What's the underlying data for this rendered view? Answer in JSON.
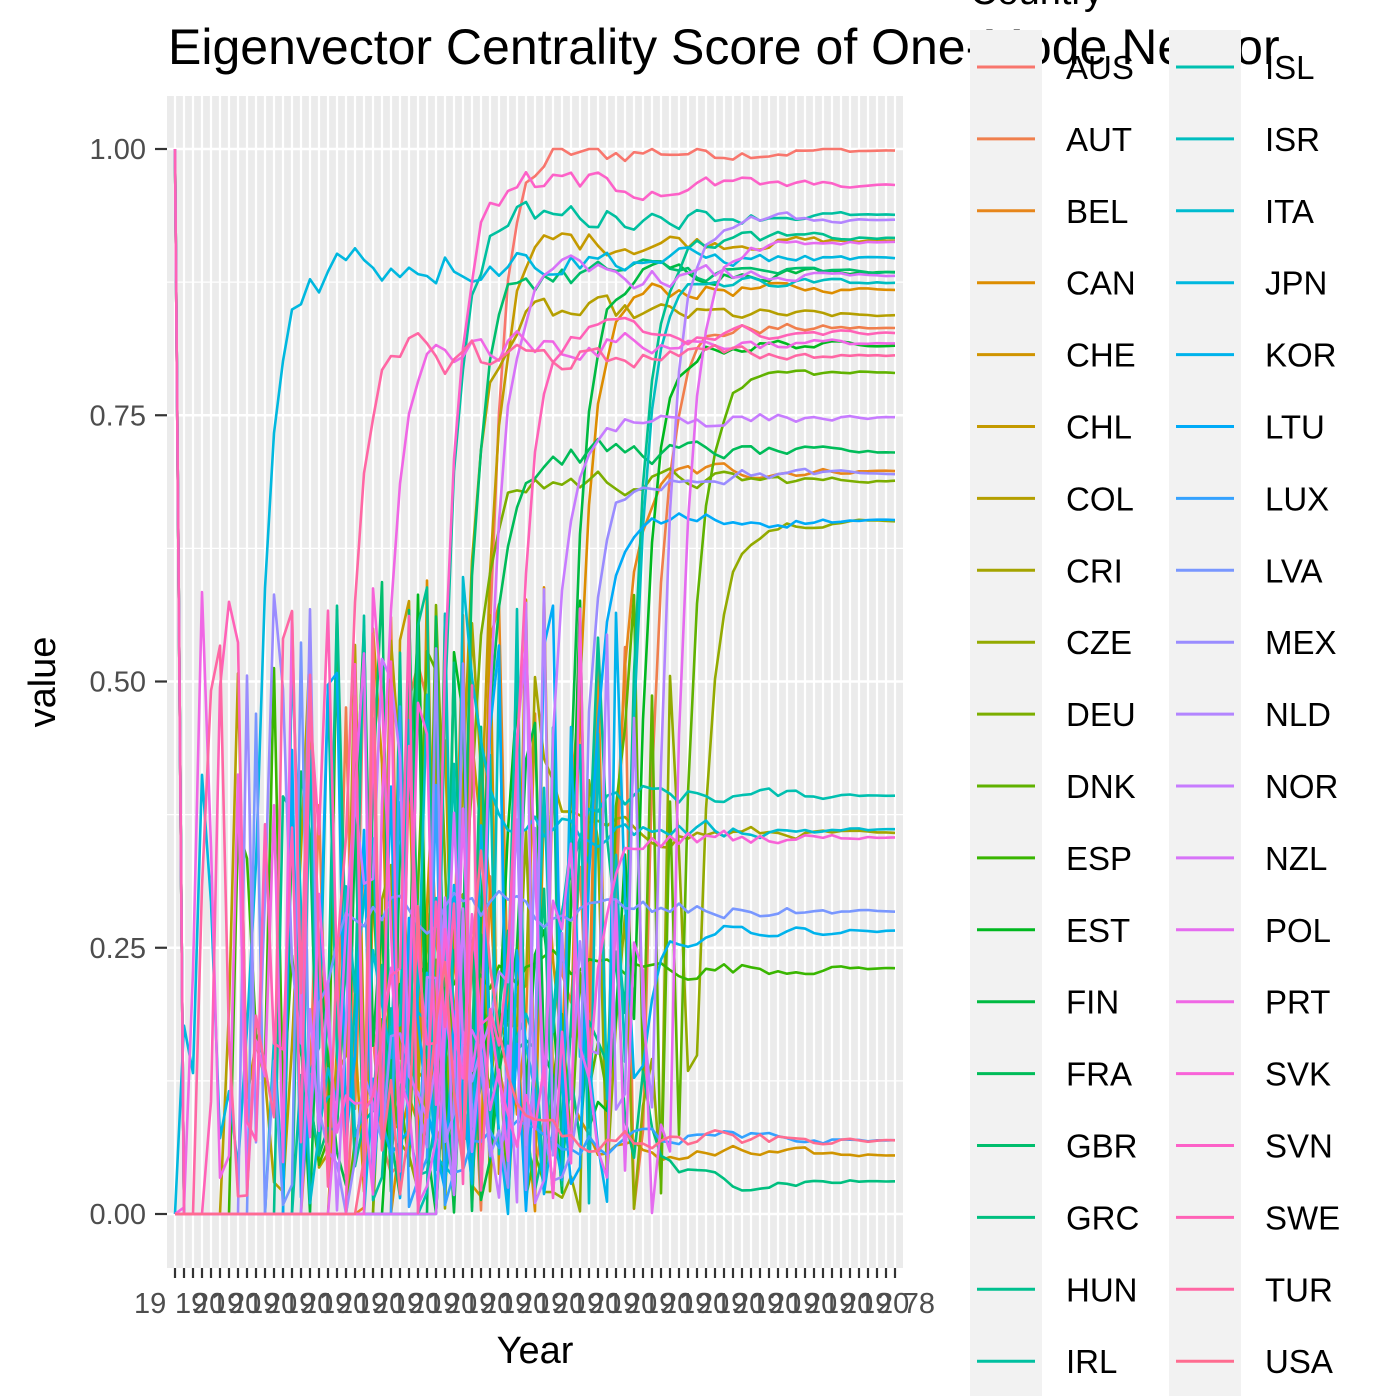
{
  "chart_data": {
    "type": "line",
    "title": "Eigenvector Centrality Score of One-Mode Networ",
    "xlabel": "Year",
    "ylabel": "value",
    "ylim": [
      -0.04,
      1.05
    ],
    "yticks": [
      0.0,
      0.25,
      0.5,
      0.75,
      1.0
    ],
    "ytick_labels": [
      "0.00",
      "0.25",
      "0.50",
      "0.75",
      "1.00"
    ],
    "xtick_count": 81,
    "xtick_labels_visible": [
      "19",
      "78"
    ],
    "grid": true,
    "panel_background": "#ebebeb",
    "legend": {
      "title": "Country",
      "placement": "right",
      "columns": 2,
      "background": "#f2f2f2"
    },
    "series": [
      {
        "name": "AUS",
        "color": "#F8766D"
      },
      {
        "name": "AUT",
        "color": "#F07F4D"
      },
      {
        "name": "BEL",
        "color": "#E7861B"
      },
      {
        "name": "CAN",
        "color": "#DD8D00"
      },
      {
        "name": "CHE",
        "color": "#D09400"
      },
      {
        "name": "CHL",
        "color": "#C49A00"
      },
      {
        "name": "COL",
        "color": "#B59F00"
      },
      {
        "name": "CRI",
        "color": "#A5A400"
      },
      {
        "name": "CZE",
        "color": "#93AA00"
      },
      {
        "name": "DEU",
        "color": "#7CAE00"
      },
      {
        "name": "DNK",
        "color": "#60B200"
      },
      {
        "name": "ESP",
        "color": "#39B600"
      },
      {
        "name": "EST",
        "color": "#00B81F"
      },
      {
        "name": "FIN",
        "color": "#00BA42"
      },
      {
        "name": "FRA",
        "color": "#00BC59"
      },
      {
        "name": "GBR",
        "color": "#00BE6D"
      },
      {
        "name": "GRC",
        "color": "#00BF7F"
      },
      {
        "name": "HUN",
        "color": "#00C08F"
      },
      {
        "name": "IRL",
        "color": "#00C0A0"
      },
      {
        "name": "ISL",
        "color": "#00C0B0"
      },
      {
        "name": "ISR",
        "color": "#00BEC0"
      },
      {
        "name": "ITA",
        "color": "#00BCD0"
      },
      {
        "name": "JPN",
        "color": "#00B8DF"
      },
      {
        "name": "KOR",
        "color": "#00B3EC"
      },
      {
        "name": "LTU",
        "color": "#00ABF8"
      },
      {
        "name": "LUX",
        "color": "#35A2FF"
      },
      {
        "name": "LVA",
        "color": "#7997FF"
      },
      {
        "name": "MEX",
        "color": "#9A8CFF"
      },
      {
        "name": "NLD",
        "color": "#B385FF"
      },
      {
        "name": "NOR",
        "color": "#C77CFF"
      },
      {
        "name": "NZL",
        "color": "#D773F8"
      },
      {
        "name": "POL",
        "color": "#E56BF0"
      },
      {
        "name": "PRT",
        "color": "#F067E5"
      },
      {
        "name": "SVK",
        "color": "#F863D8"
      },
      {
        "name": "SVN",
        "color": "#FD61C8"
      },
      {
        "name": "SWE",
        "color": "#FF62B7"
      },
      {
        "name": "TUR",
        "color": "#FF67A4"
      },
      {
        "name": "USA",
        "color": "#FF6C90"
      }
    ]
  }
}
